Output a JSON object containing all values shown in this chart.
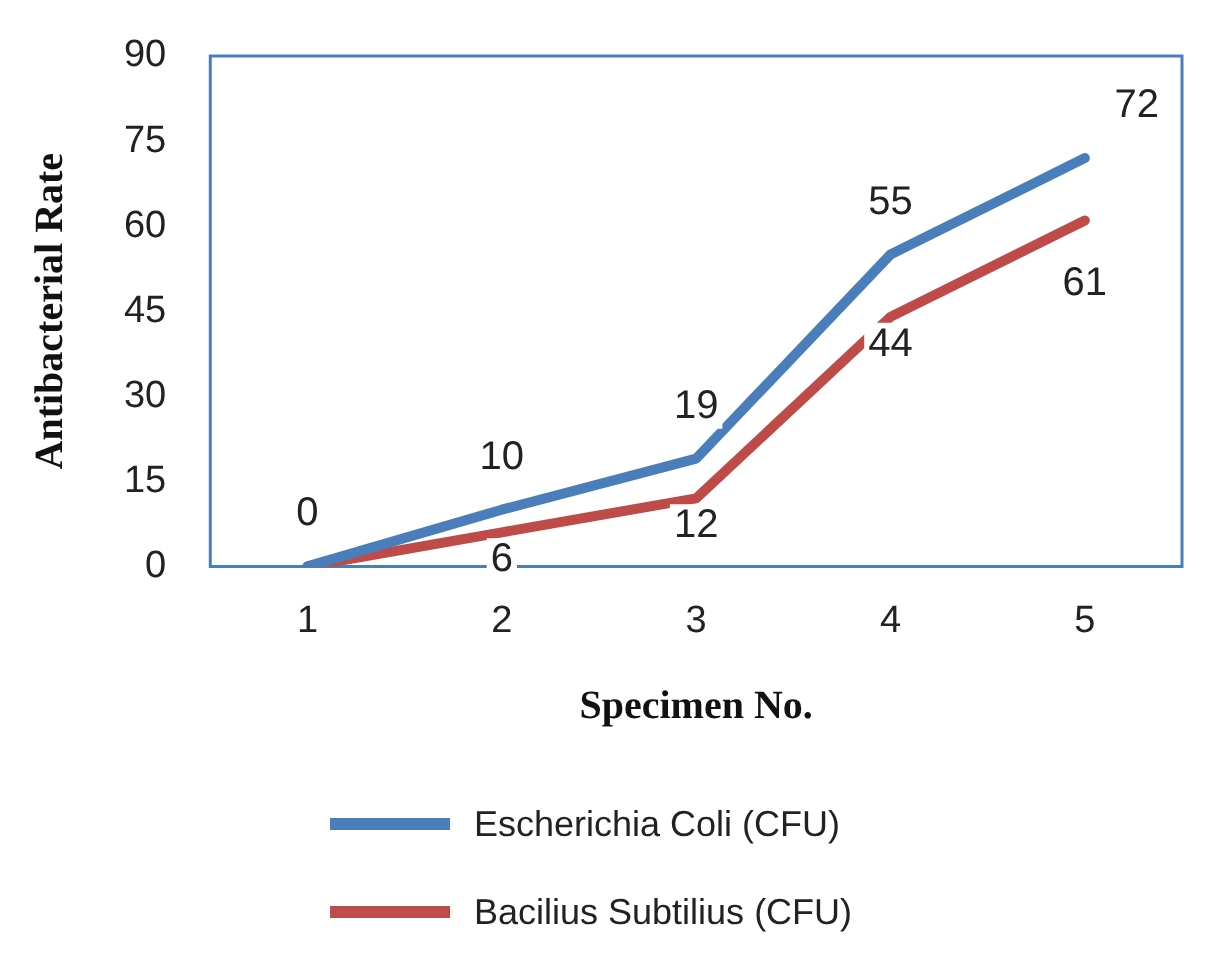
{
  "chart_data": {
    "type": "line",
    "xlabel": "Specimen No.",
    "ylabel": "Antibacterial Rate",
    "categories": [
      "1",
      "2",
      "3",
      "4",
      "5"
    ],
    "series": [
      {
        "name": "Escherichia Coli (CFU)",
        "color": "#4a7ebb",
        "values": [
          0,
          10,
          19,
          55,
          72
        ],
        "value_labels": [
          "0",
          "10",
          "19",
          "55",
          "72"
        ]
      },
      {
        "name": "Bacilius Subtilius (CFU)",
        "color": "#be4b48",
        "values": [
          0,
          6,
          12,
          44,
          61
        ],
        "value_labels": [
          null,
          "6",
          "12",
          "44",
          "61"
        ]
      }
    ],
    "ylim": [
      0,
      90
    ],
    "yticks": [
      0,
      15,
      30,
      45,
      60,
      75,
      90
    ],
    "grid": false,
    "legend": "bottom",
    "marker": "none",
    "line_style": "solid"
  }
}
